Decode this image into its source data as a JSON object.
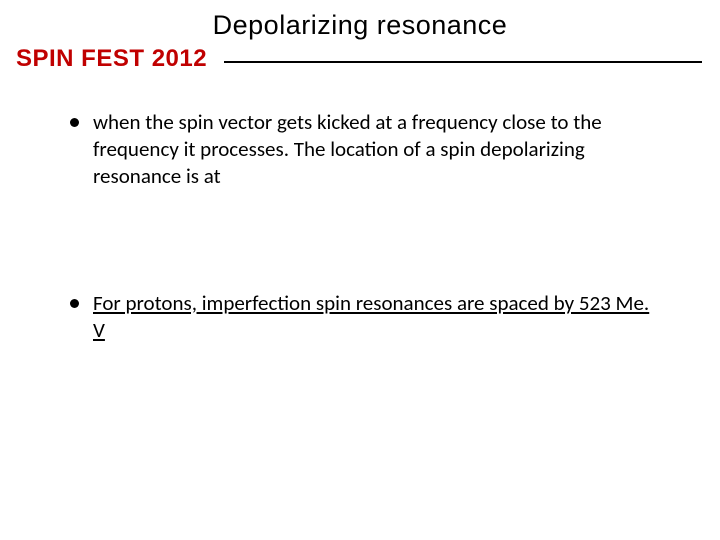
{
  "title": "Depolarizing resonance",
  "header": {
    "brand": "SPIN FEST 2012",
    "brand_color": "#c00000",
    "divider_color": "#000000"
  },
  "bullets": [
    {
      "text": "when the spin vector gets kicked at a frequency close  to the frequency it processes. The location of a spin depolarizing resonance is at",
      "underlined": false
    },
    {
      "text": "For protons, imperfection spin resonances are spaced by 523 Me. V",
      "underlined": true
    }
  ],
  "styles": {
    "background_color": "#ffffff",
    "title_fontsize": 27,
    "title_color": "#000000",
    "brand_fontsize": 24,
    "bullet_fontsize": 21,
    "bullet_color": "#000000",
    "bullet_dot_color": "#000000"
  }
}
